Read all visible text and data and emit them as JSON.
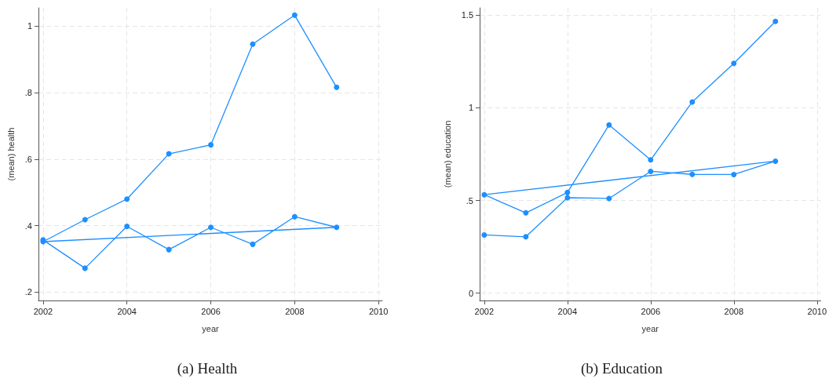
{
  "chart_data": [
    {
      "type": "line",
      "title": "(a) Health",
      "xlabel": "year",
      "ylabel": "(mean) health",
      "series": [
        {
          "color": "#1e8fff",
          "x": [
            2002,
            2003,
            2004,
            2005,
            2006,
            2007,
            2008,
            2009,
            2002,
            2003,
            2004,
            2005,
            2006,
            2007,
            2008,
            2009
          ],
          "values": [
            0.357,
            0.272,
            0.398,
            0.328,
            0.395,
            0.344,
            0.427,
            0.395,
            0.352,
            0.418,
            0.48,
            0.616,
            0.643,
            0.946,
            1.033,
            0.816
          ]
        }
      ],
      "xlim": [
        2001.89,
        2010.09
      ],
      "xticks": [
        2002,
        2004,
        2006,
        2008,
        2010
      ],
      "ylim": [
        0.175,
        1.055
      ],
      "yticks": [
        {
          "value": 0.2,
          "label": ".2"
        },
        {
          "value": 0.4,
          "label": ".4"
        },
        {
          "value": 0.6,
          "label": ".6"
        },
        {
          "value": 0.8,
          "label": ".8"
        },
        1
      ],
      "grid": true,
      "marker": "circle",
      "line_style": "solid"
    },
    {
      "type": "line",
      "title": "(b) Education",
      "xlabel": "year",
      "ylabel": "(mean) education",
      "series": [
        {
          "color": "#1e8fff",
          "x": [
            2002,
            2003,
            2004,
            2005,
            2006,
            2007,
            2008,
            2009,
            2002,
            2003,
            2004,
            2005,
            2006,
            2007,
            2008,
            2009
          ],
          "values": [
            0.314,
            0.304,
            0.515,
            0.511,
            0.657,
            0.641,
            0.64,
            0.712,
            0.531,
            0.433,
            0.543,
            0.908,
            0.719,
            1.032,
            1.24,
            1.467
          ]
        }
      ],
      "xlim": [
        2001.89,
        2010.09
      ],
      "xticks": [
        2002,
        2004,
        2006,
        2008,
        2010
      ],
      "ylim": [
        -0.04,
        1.54
      ],
      "yticks": [
        0,
        {
          "value": 0.5,
          "label": ".5"
        },
        1,
        1.5
      ],
      "grid": true,
      "marker": "circle",
      "line_style": "solid"
    }
  ]
}
